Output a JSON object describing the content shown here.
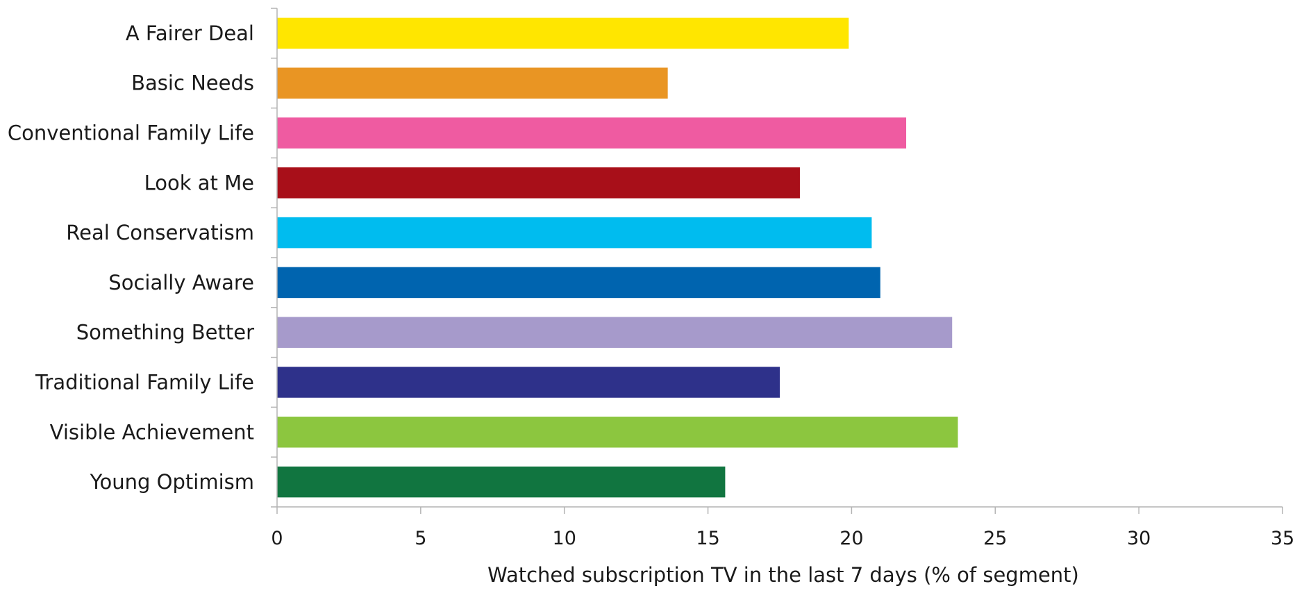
{
  "chart_data": {
    "type": "bar",
    "orientation": "horizontal",
    "title": "",
    "xlabel": "Watched subscription TV in the last 7 days (% of segment)",
    "ylabel": "",
    "xlim": [
      0,
      35
    ],
    "xticks": [
      0,
      5,
      10,
      15,
      20,
      25,
      30,
      35
    ],
    "grid": false,
    "legend": "none",
    "categories": [
      "A Fairer Deal",
      "Basic Needs",
      "Conventional Family Life",
      "Look at Me",
      "Real Conservatism",
      "Socially Aware",
      "Something Better",
      "Traditional Family Life",
      "Visible Achievement",
      "Young Optimism"
    ],
    "values": [
      19.9,
      13.6,
      21.9,
      18.2,
      20.7,
      21.0,
      23.5,
      17.5,
      23.7,
      15.6
    ],
    "colors": [
      "#ffe600",
      "#e99523",
      "#ef5ba1",
      "#a80f19",
      "#00bcef",
      "#0064af",
      "#a69acb",
      "#2e318a",
      "#8cc63f",
      "#117540"
    ]
  }
}
